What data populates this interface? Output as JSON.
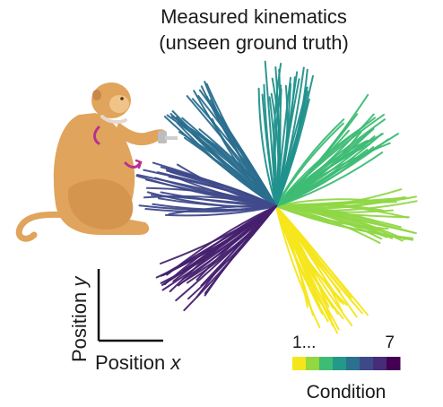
{
  "title": {
    "line1": "Measured kinematics",
    "line2": "(unseen ground truth)"
  },
  "axes": {
    "xlabel": "Position x",
    "ylabel": "Position y",
    "xlabel_main": "Position ",
    "xlabel_var": "x",
    "ylabel_main": "Position ",
    "ylabel_var": "y"
  },
  "colorbar": {
    "label": "Condition",
    "tick_start": "1...",
    "tick_end": "7",
    "colors": [
      "#f5e61b",
      "#93d741",
      "#3dbc74",
      "#22998b",
      "#2c718e",
      "#3e4989",
      "#472c7a",
      "#440154"
    ]
  },
  "illustration": {
    "subject": "monkey-icon",
    "body_color": "#e0a45c",
    "accent_color": "#b8318f"
  },
  "chart_data": {
    "type": "trajectory-fan",
    "conditions": [
      {
        "condition": 1,
        "direction_deg": -60,
        "color": "#f5e61b"
      },
      {
        "condition": 2,
        "direction_deg": -5,
        "color": "#8fd744"
      },
      {
        "condition": 3,
        "direction_deg": 40,
        "color": "#3dbc74"
      },
      {
        "condition": 4,
        "direction_deg": 85,
        "color": "#21918c"
      },
      {
        "condition": 5,
        "direction_deg": 130,
        "color": "#2a6e8e"
      },
      {
        "condition": 6,
        "direction_deg": 172,
        "color": "#404a8b"
      },
      {
        "condition": 7,
        "direction_deg": 218,
        "color": "#46216f"
      }
    ]
  }
}
